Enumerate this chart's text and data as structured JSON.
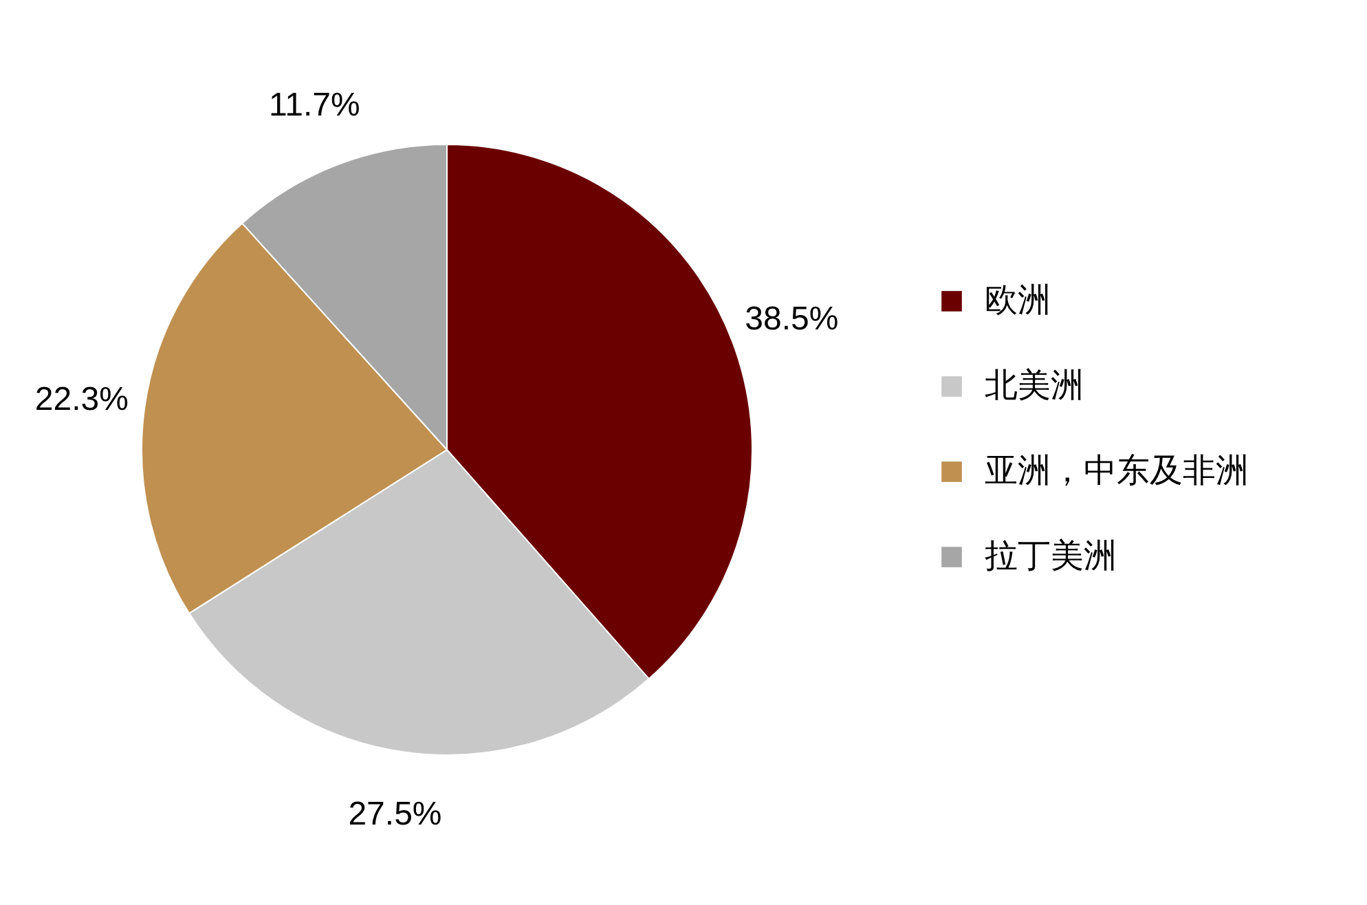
{
  "chart_data": {
    "type": "pie",
    "categories": [
      "欧洲",
      "北美洲",
      "亚洲，中东及非洲",
      "拉丁美洲"
    ],
    "values": [
      38.5,
      27.5,
      22.3,
      11.7
    ],
    "colors": [
      "#6b0000",
      "#c8c8c8",
      "#c09050",
      "#a6a6a6"
    ],
    "value_labels": [
      "38.5%",
      "27.5%",
      "22.3%",
      "11.7%"
    ],
    "legend": "right"
  }
}
